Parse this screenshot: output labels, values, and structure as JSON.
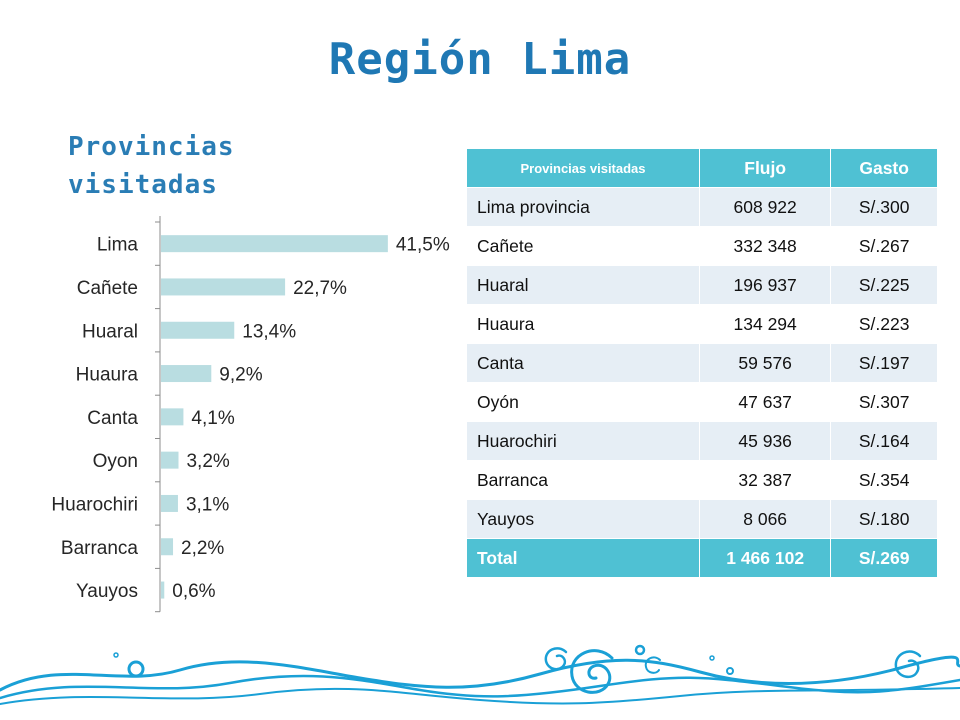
{
  "page": {
    "title": "Región Lima",
    "subtitle": "Provincias visitadas"
  },
  "chart_data": {
    "type": "bar",
    "orientation": "horizontal",
    "categories": [
      "Lima",
      "Cañete",
      "Huaral",
      "Huaura",
      "Canta",
      "Oyon",
      "Huarochiri",
      "Barranca",
      "Yauyos"
    ],
    "values": [
      41.5,
      22.7,
      13.4,
      9.2,
      4.1,
      3.2,
      3.1,
      2.2,
      0.6
    ],
    "data_labels": [
      "41,5%",
      "22,7%",
      "13,4%",
      "9,2%",
      "4,1%",
      "3,2%",
      "3,1%",
      "2,2%",
      "0,6%"
    ],
    "bar_color": "#b9dde1",
    "xlim": [
      0,
      45
    ],
    "grid": false
  },
  "table": {
    "headers": [
      "Provincias visitadas",
      "Flujo",
      "Gasto"
    ],
    "rows": [
      [
        "Lima provincia",
        "608 922",
        "S/.300"
      ],
      [
        "Cañete",
        "332 348",
        "S/.267"
      ],
      [
        "Huaral",
        "196 937",
        "S/.225"
      ],
      [
        "Huaura",
        "134 294",
        "S/.223"
      ],
      [
        "Canta",
        "59 576",
        "S/.197"
      ],
      [
        "Oyón",
        "47 637",
        "S/.307"
      ],
      [
        "Huarochiri",
        "45 936",
        "S/.164"
      ],
      [
        "Barranca",
        "32 387",
        "S/.354"
      ],
      [
        "Yauyos",
        "8 066",
        "S/.180"
      ]
    ],
    "total": [
      "Total",
      "1 466 102",
      "S/.269"
    ],
    "header_color": "#4fc1d3",
    "stripe_color": "#e6eef5"
  },
  "decoration": {
    "color": "#1aa0d6",
    "icon": "wave-spiral-border"
  }
}
